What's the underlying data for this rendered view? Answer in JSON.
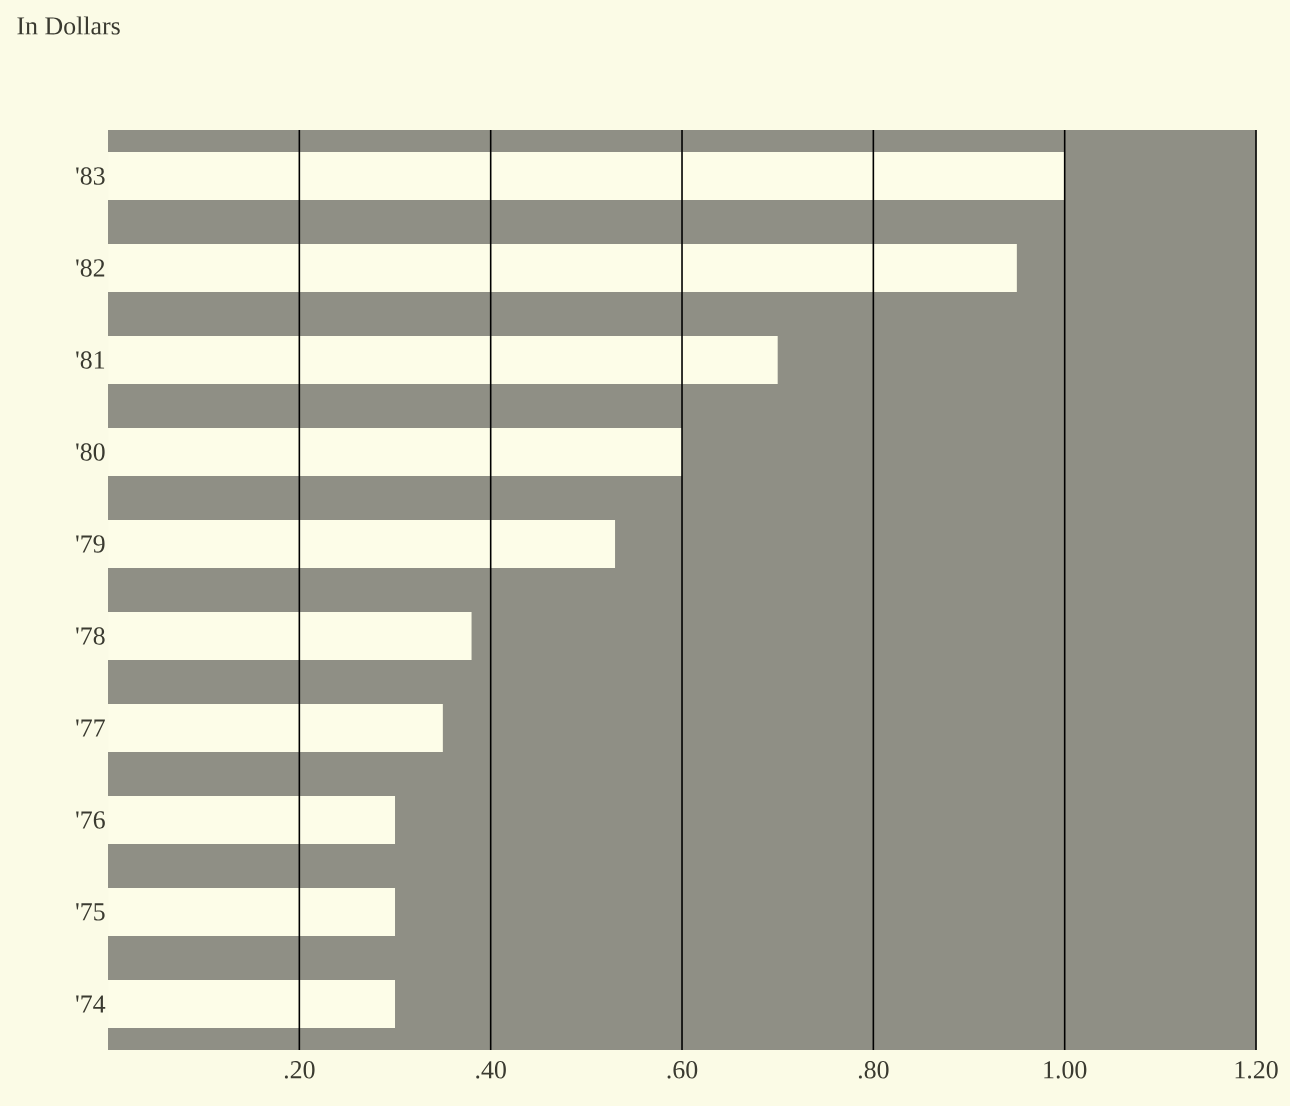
{
  "chart_data": {
    "type": "bar",
    "orientation": "horizontal",
    "subtitle": "In Dollars",
    "categories": [
      "'83",
      "'82",
      "'81",
      "'80",
      "'79",
      "'78",
      "'77",
      "'76",
      "'75",
      "'74"
    ],
    "values": [
      1.0,
      0.95,
      0.7,
      0.6,
      0.53,
      0.38,
      0.35,
      0.3,
      0.3,
      0.3
    ],
    "color": "#fdfde8",
    "xlim": [
      0,
      1.2
    ],
    "xticks": [
      {
        "value": 0.2,
        "label": ".20"
      },
      {
        "value": 0.4,
        "label": ".40"
      },
      {
        "value": 0.6,
        "label": ".60"
      },
      {
        "value": 0.8,
        "label": ".80"
      },
      {
        "value": 1.0,
        "label": "1.00"
      },
      {
        "value": 1.2,
        "label": "1.20"
      }
    ],
    "grid": "x"
  }
}
